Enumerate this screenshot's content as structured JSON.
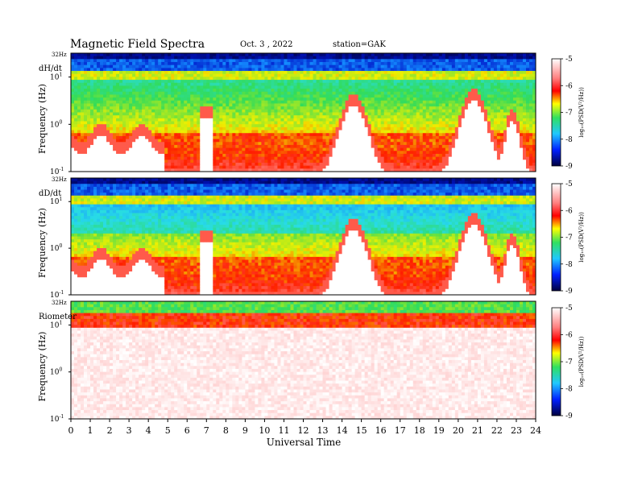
{
  "header": {
    "title": "Magnetic Field Spectra",
    "date": "Oct. 3 , 2022",
    "station": "station=GAK"
  },
  "chart_data": [
    {
      "type": "heatmap",
      "panel_label": "dH/dt",
      "ylabel": "Frequency (Hz)",
      "ytop_label": "32Hz",
      "yscale": "log",
      "yticks": [
        {
          "base": "10",
          "exp": "1",
          "value": 10
        },
        {
          "base": "10",
          "exp": "0",
          "value": 1
        },
        {
          "base": "10",
          "exp": "-1",
          "value": 0.1
        }
      ],
      "ylim": [
        0.1,
        32
      ],
      "xlim": [
        0,
        24
      ],
      "colorbar": {
        "label": "log₁₀(PSD(V²/Hz))",
        "ticks": [
          "-5",
          "-6",
          "-7",
          "-8",
          "-9"
        ],
        "range": [
          -9,
          -5
        ]
      },
      "hump_peaks_hz": [
        {
          "t_hours": 14.6,
          "f_hz": 2.5
        },
        {
          "t_hours": 20.8,
          "f_hz": 3.2
        },
        {
          "t_hours": 22.8,
          "f_hz": 1.2
        }
      ]
    },
    {
      "type": "heatmap",
      "panel_label": "dD/dt",
      "ylabel": "Frequency (Hz)",
      "ytop_label": "32Hz",
      "yscale": "log",
      "yticks": [
        {
          "base": "10",
          "exp": "1",
          "value": 10
        },
        {
          "base": "10",
          "exp": "0",
          "value": 1
        },
        {
          "base": "10",
          "exp": "-1",
          "value": 0.1
        }
      ],
      "ylim": [
        0.1,
        32
      ],
      "xlim": [
        0,
        24
      ],
      "colorbar": {
        "label": "log₁₀(PSD(V²/Hz))",
        "ticks": [
          "-5",
          "-6",
          "-7",
          "-8",
          "-9"
        ],
        "range": [
          -9,
          -5
        ]
      },
      "hump_peaks_hz": [
        {
          "t_hours": 14.6,
          "f_hz": 2.5
        },
        {
          "t_hours": 20.8,
          "f_hz": 3.2
        },
        {
          "t_hours": 22.8,
          "f_hz": 1.2
        }
      ]
    },
    {
      "type": "heatmap",
      "panel_label": "Riometer",
      "ylabel": "Frequency (Hz)",
      "ytop_label": "32Hz",
      "yscale": "log",
      "yticks": [
        {
          "base": "10",
          "exp": "1",
          "value": 10
        },
        {
          "base": "10",
          "exp": "0",
          "value": 1
        },
        {
          "base": "10",
          "exp": "-1",
          "value": 0.1
        }
      ],
      "ylim": [
        0.1,
        32
      ],
      "xlim": [
        0,
        24
      ],
      "colorbar": {
        "label": "log₁₀(PSD(V²/Hz))",
        "ticks": [
          "-5",
          "-6",
          "-7",
          "-8",
          "-9"
        ],
        "range": [
          -9,
          -5
        ]
      }
    }
  ],
  "x_axis": {
    "label": "Universal Time",
    "ticks": [
      "0",
      "1",
      "2",
      "3",
      "4",
      "5",
      "6",
      "7",
      "8",
      "9",
      "10",
      "11",
      "12",
      "13",
      "14",
      "15",
      "16",
      "17",
      "18",
      "19",
      "20",
      "21",
      "22",
      "23",
      "24"
    ]
  },
  "colors": {
    "scale": [
      "#000030",
      "#0000a0",
      "#1050ff",
      "#20c8ff",
      "#30e070",
      "#ffff00",
      "#ff2000",
      "#ffa0a0",
      "#ffffff"
    ]
  }
}
